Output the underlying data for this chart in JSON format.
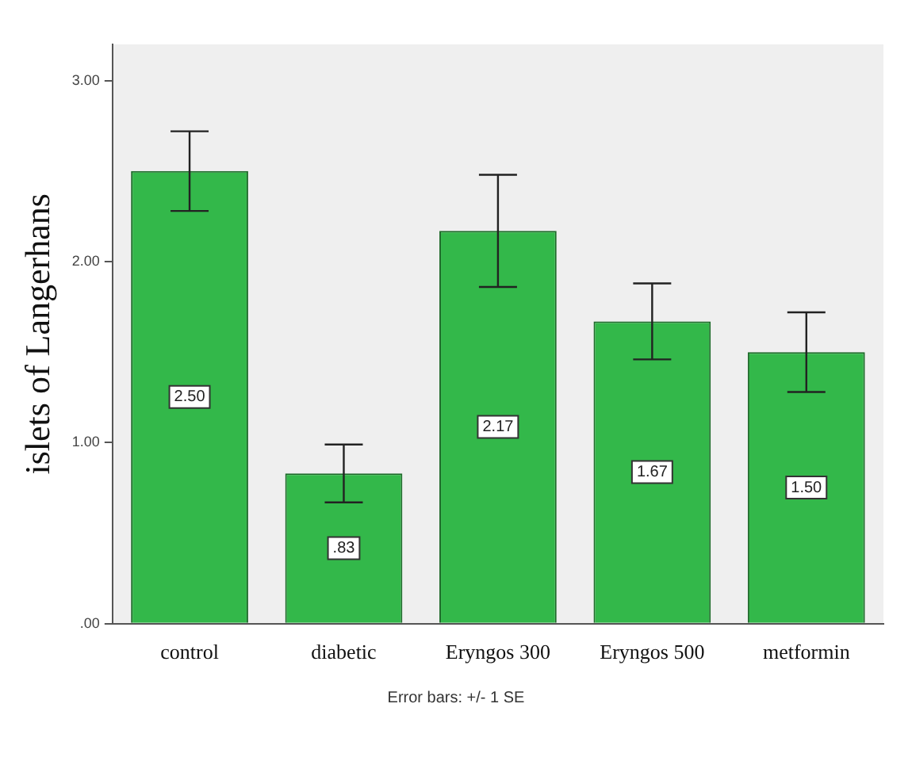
{
  "chart_data": {
    "type": "bar",
    "ylabel": "islets of Langerhans",
    "categories": [
      "control",
      "diabetic",
      "Eryngos 300",
      "Eryngos 500",
      "metformin"
    ],
    "values": [
      2.5,
      0.83,
      2.17,
      1.67,
      1.5
    ],
    "value_labels": [
      "2.50",
      ".83",
      "2.17",
      "1.67",
      "1.50"
    ],
    "errors": [
      0.22,
      0.16,
      0.31,
      0.21,
      0.22
    ],
    "color": "#33b84a",
    "ylim": [
      0,
      3.2
    ],
    "yticks": [
      {
        "value": 0,
        "label": ".00"
      },
      {
        "value": 1,
        "label": "1.00"
      },
      {
        "value": 2,
        "label": "2.00"
      },
      {
        "value": 3,
        "label": "3.00"
      }
    ],
    "grid": false,
    "annotations": [
      "Error bars: +/- 1 SE"
    ]
  }
}
